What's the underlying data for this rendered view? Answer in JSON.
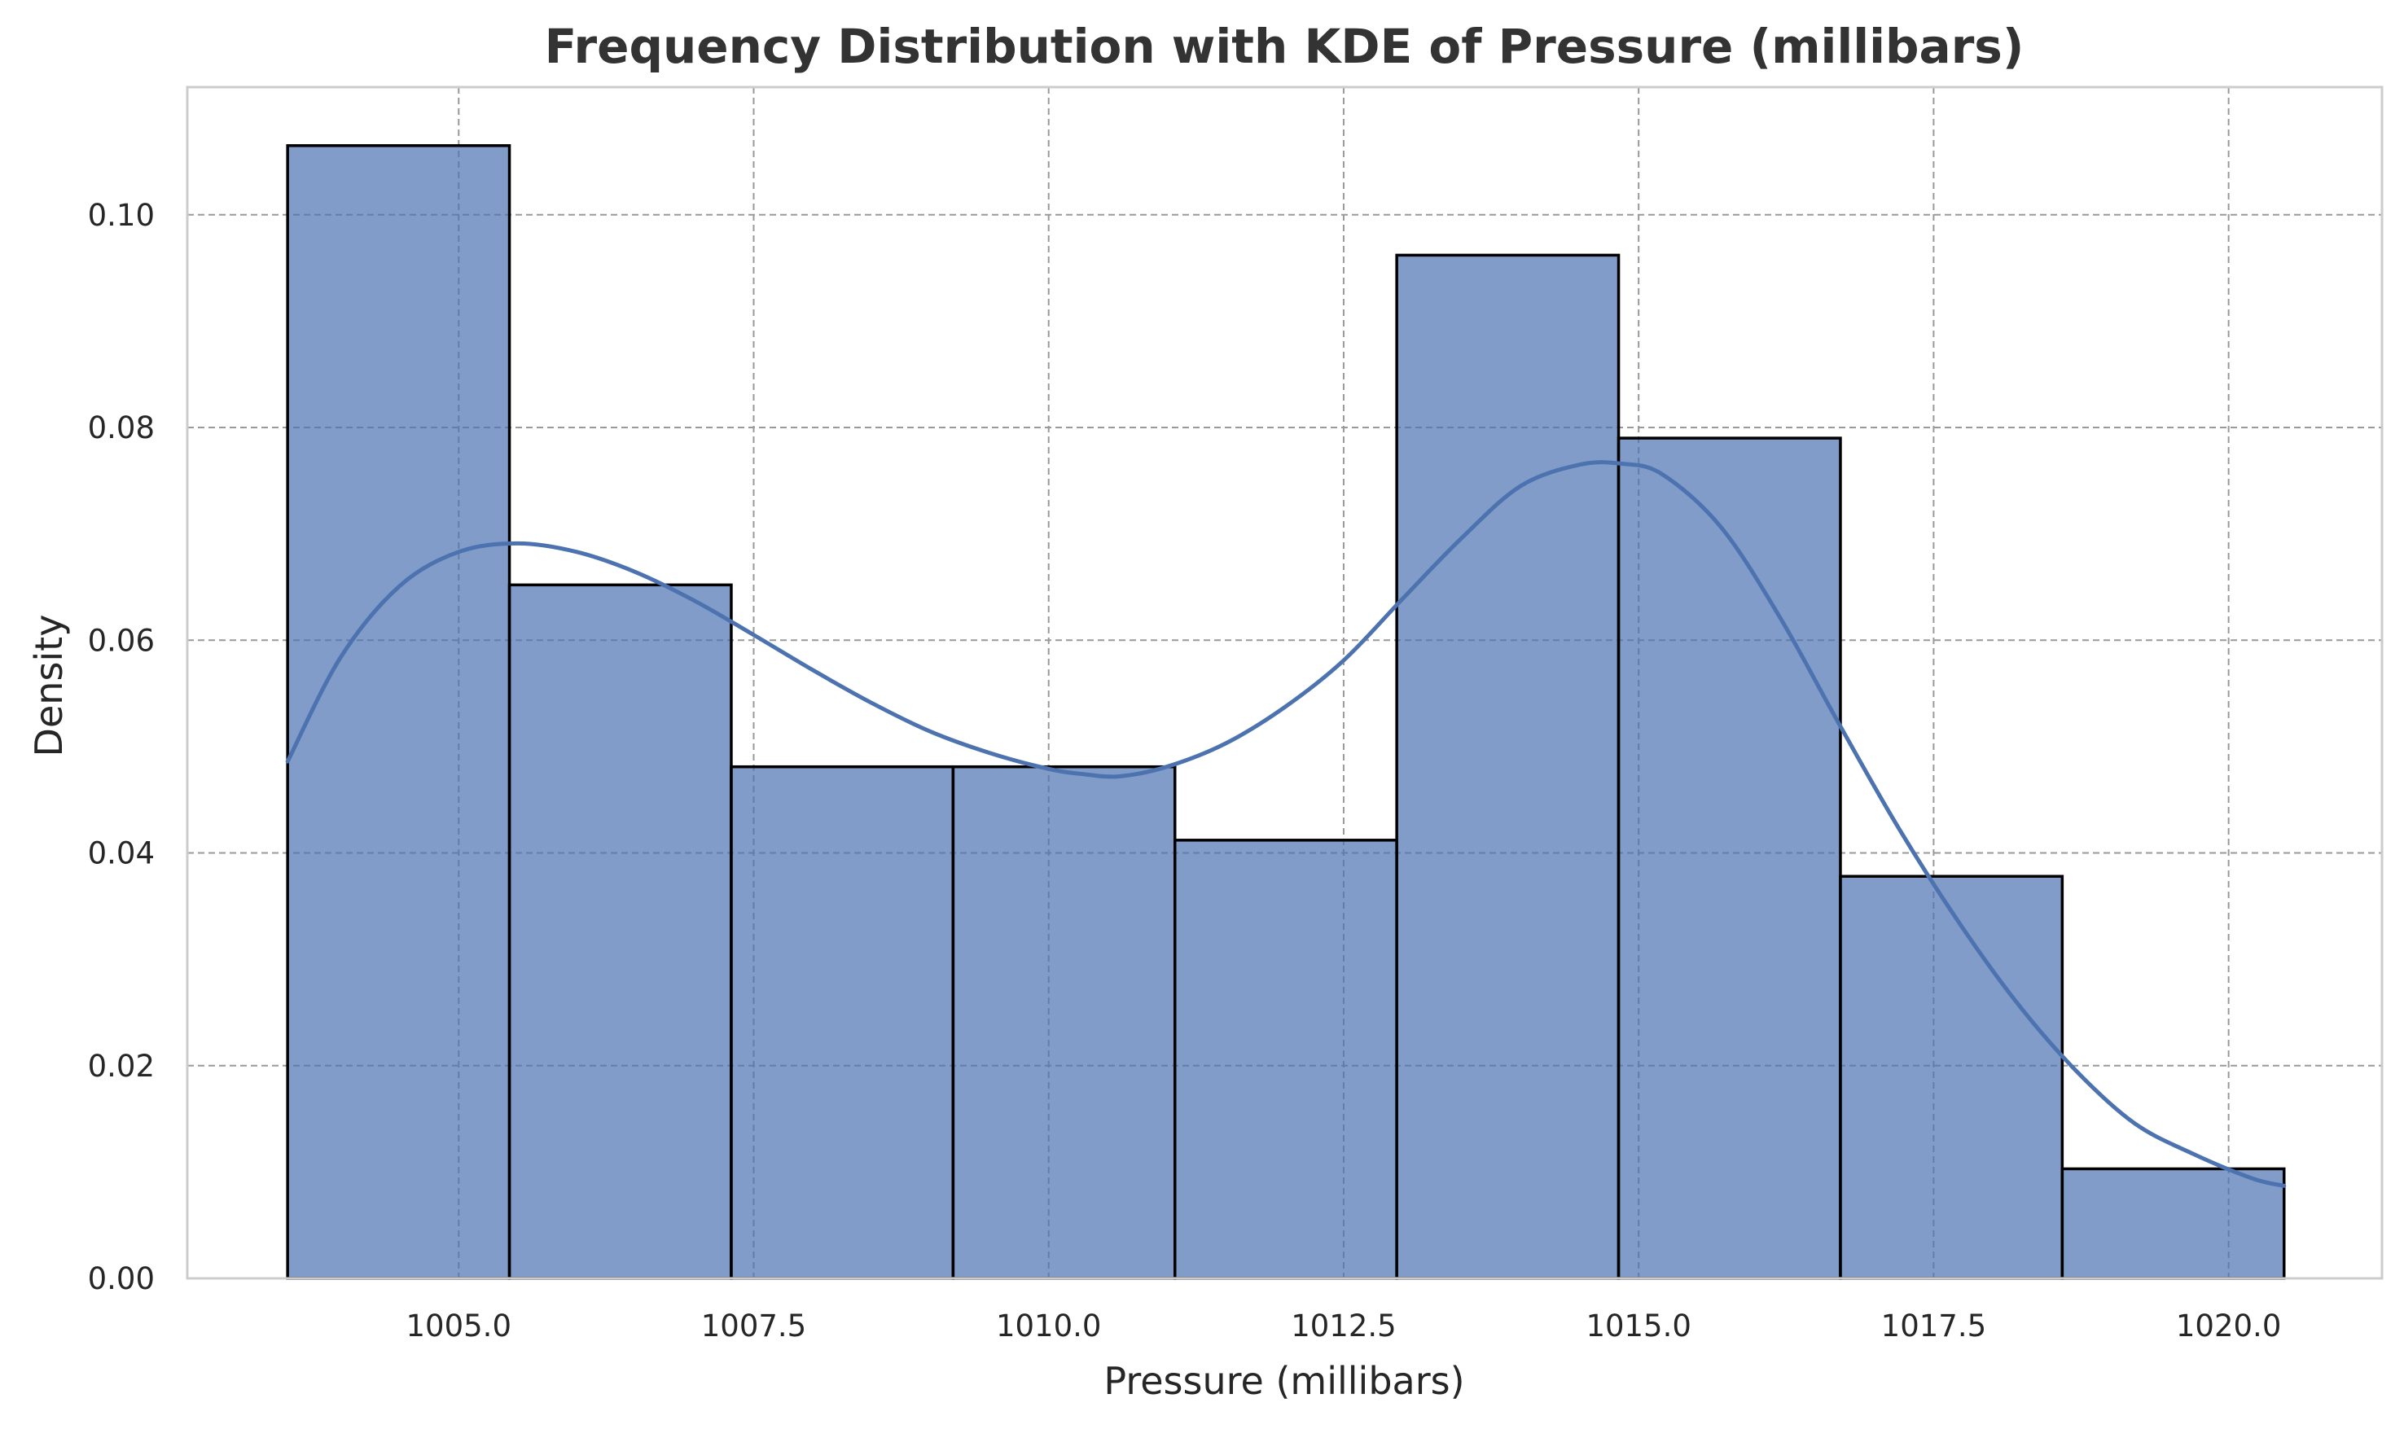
{
  "colors": {
    "bar_fill": "#4c72b0",
    "bar_fill_opacity": 0.7,
    "bar_edge": "#000000",
    "kde_line": "#4c72b0",
    "grid": "#999999",
    "frame": "#cccccc",
    "title": "#333333"
  },
  "chart_data": {
    "type": "bar",
    "subtype": "histogram with KDE",
    "title": "Frequency Distribution with KDE of Pressure (millibars)",
    "xlabel": "Pressure (millibars)",
    "ylabel": "Density",
    "xlim": [
      1002.7,
      1021.3
    ],
    "ylim": [
      0,
      0.112
    ],
    "grid": true,
    "xticks": [
      1005.0,
      1007.5,
      1010.0,
      1012.5,
      1015.0,
      1017.5,
      1020.0
    ],
    "xtick_labels": [
      "1005.0",
      "1007.5",
      "1010.0",
      "1012.5",
      "1015.0",
      "1017.5",
      "1020.0"
    ],
    "yticks": [
      0.0,
      0.02,
      0.04,
      0.06,
      0.08,
      0.1
    ],
    "ytick_labels": [
      "0.00",
      "0.02",
      "0.04",
      "0.06",
      "0.08",
      "0.10"
    ],
    "bins": [
      {
        "start": 1003.55,
        "end": 1005.43,
        "value": 0.1065
      },
      {
        "start": 1005.43,
        "end": 1007.31,
        "value": 0.0652
      },
      {
        "start": 1007.31,
        "end": 1009.19,
        "value": 0.0481
      },
      {
        "start": 1009.19,
        "end": 1011.07,
        "value": 0.0481
      },
      {
        "start": 1011.07,
        "end": 1012.95,
        "value": 0.0412
      },
      {
        "start": 1012.95,
        "end": 1014.83,
        "value": 0.0962
      },
      {
        "start": 1014.83,
        "end": 1016.71,
        "value": 0.079
      },
      {
        "start": 1016.71,
        "end": 1018.59,
        "value": 0.0378
      },
      {
        "start": 1018.59,
        "end": 1020.47,
        "value": 0.0103
      }
    ],
    "kde": {
      "x": [
        1003.55,
        1004.0,
        1004.5,
        1005.0,
        1005.5,
        1006.0,
        1006.5,
        1007.0,
        1007.5,
        1008.0,
        1008.5,
        1009.0,
        1009.5,
        1010.0,
        1010.3,
        1010.6,
        1011.0,
        1011.5,
        1012.0,
        1012.5,
        1013.0,
        1013.5,
        1014.0,
        1014.5,
        1014.85,
        1015.2,
        1015.7,
        1016.2,
        1016.7,
        1017.2,
        1017.7,
        1018.2,
        1018.7,
        1019.2,
        1019.7,
        1020.2,
        1020.47
      ],
      "y": [
        0.0486,
        0.0584,
        0.0651,
        0.0683,
        0.0691,
        0.0683,
        0.0664,
        0.0637,
        0.0605,
        0.0572,
        0.0541,
        0.0514,
        0.0494,
        0.0479,
        0.0474,
        0.0472,
        0.0481,
        0.0503,
        0.0537,
        0.0581,
        0.0639,
        0.0696,
        0.0745,
        0.0765,
        0.0766,
        0.0756,
        0.0706,
        0.0621,
        0.0521,
        0.0424,
        0.0337,
        0.026,
        0.0196,
        0.0146,
        0.0117,
        0.0094,
        0.0087
      ]
    }
  }
}
